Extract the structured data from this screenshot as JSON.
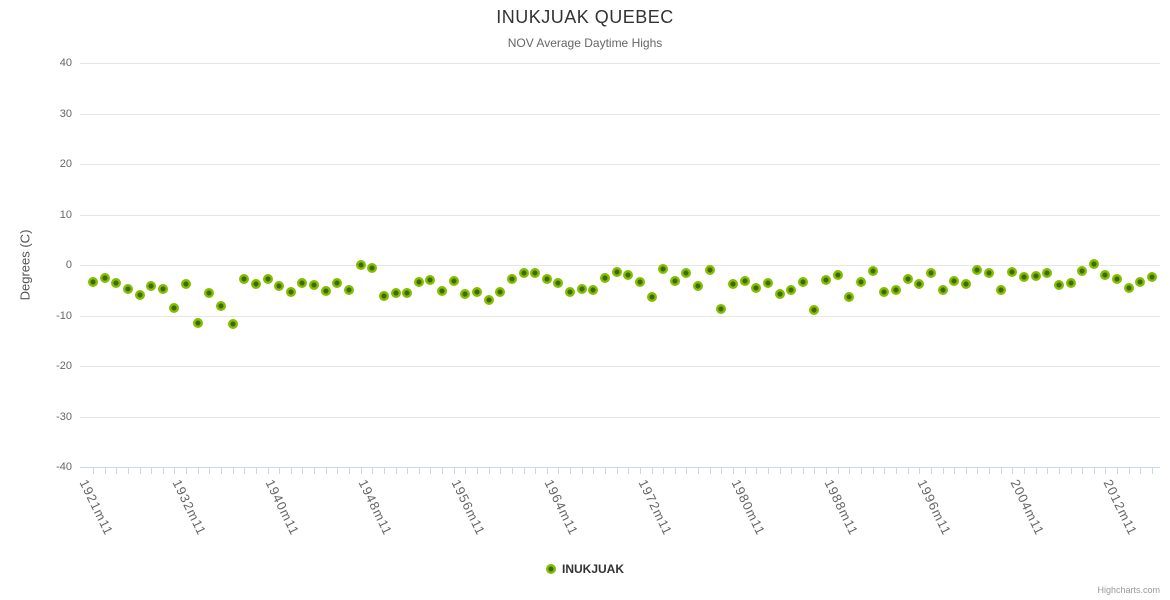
{
  "chart": {
    "credits_label": "Highcharts.com"
  },
  "chart_data": {
    "type": "scatter",
    "title": "INUKJUAK QUEBEC",
    "subtitle": "NOV Average Daytime Highs",
    "xlabel": "",
    "ylabel": "Degrees (C)",
    "ylim": [
      -40,
      40
    ],
    "ytick_step": 10,
    "grid": true,
    "legend_position": "bottom-center",
    "x_label_every": 8,
    "colors": {
      "point_outer": "#84bd00",
      "point_inner": "#3e6b00",
      "grid_line": "#e6e6e6",
      "axis_line": "#ccd6eb",
      "tick_label": "#666666"
    },
    "series": [
      {
        "name": "INUKJUAK"
      }
    ],
    "categories": [
      "1921m11",
      "1925m11",
      "1926m11",
      "1927m11",
      "1928m11",
      "1929m11",
      "1930m11",
      "1931m11",
      "1932m11",
      "1933m11",
      "1934m11",
      "1935m11",
      "1936m11",
      "1937m11",
      "1938m11",
      "1939m11",
      "1940m11",
      "1941m11",
      "1942m11",
      "1943m11",
      "1944m11",
      "1945m11",
      "1946m11",
      "1947m11",
      "1948m11",
      "1949m11",
      "1950m11",
      "1951m11",
      "1952m11",
      "1953m11",
      "1954m11",
      "1955m11",
      "1956m11",
      "1957m11",
      "1958m11",
      "1959m11",
      "1960m11",
      "1961m11",
      "1962m11",
      "1963m11",
      "1964m11",
      "1965m11",
      "1966m11",
      "1967m11",
      "1968m11",
      "1969m11",
      "1970m11",
      "1971m11",
      "1972m11",
      "1973m11",
      "1974m11",
      "1975m11",
      "1976m11",
      "1977m11",
      "1978m11",
      "1979m11",
      "1980m11",
      "1981m11",
      "1982m11",
      "1983m11",
      "1984m11",
      "1985m11",
      "1986m11",
      "1987m11",
      "1988m11",
      "1989m11",
      "1990m11",
      "1991m11",
      "1992m11",
      "1993m11",
      "1994m11",
      "1995m11",
      "1996m11",
      "1997m11",
      "1998m11",
      "1999m11",
      "2000m11",
      "2001m11",
      "2002m11",
      "2003m11",
      "2004m11",
      "2005m11",
      "2006m11",
      "2007m11",
      "2008m11",
      "2009m11",
      "2010m11",
      "2011m11",
      "2012m11",
      "2013m11",
      "2014m11",
      "2015m11"
    ],
    "values": [
      -3.4,
      -2.6,
      -3.6,
      -4.8,
      -5.9,
      -4.1,
      -4.7,
      -8.5,
      -3.8,
      -11.5,
      -5.5,
      -8.1,
      -11.7,
      -2.8,
      -3.8,
      -2.8,
      -4.2,
      -5.3,
      -3.5,
      -4.0,
      -5.1,
      -3.6,
      -4.9,
      0,
      -0.5,
      -6.1,
      -5.5,
      -5.5,
      -3.4,
      -2.9,
      -5.2,
      -3.1,
      -5.7,
      -5.3,
      -6.9,
      -5.4,
      -2.8,
      -1.6,
      -1.6,
      -2.8,
      -3.6,
      -5.4,
      -4.7,
      -4.9,
      -2.6,
      -1.4,
      -1.9,
      -3.4,
      -6.3,
      -0.8,
      -3.1,
      -1.5,
      -4.2,
      -0.9,
      -8.8,
      -3.8,
      -3.2,
      -4.5,
      -3.5,
      -5.7,
      -4.9,
      -3.3,
      -9.0,
      -2.9,
      -2.0,
      -6.3,
      -3.4,
      -1.2,
      -5.3,
      -5.0,
      -2.8,
      -3.8,
      -1.6,
      -4.9,
      -3.1,
      -3.8,
      -0.9,
      -1.6,
      -4.9,
      -1.4,
      -2.4,
      -2.1,
      -1.6,
      -4.0,
      -3.5,
      -1.2,
      0.1,
      -2.0,
      -2.8,
      -4.6,
      -3.4,
      -2.4
    ]
  }
}
